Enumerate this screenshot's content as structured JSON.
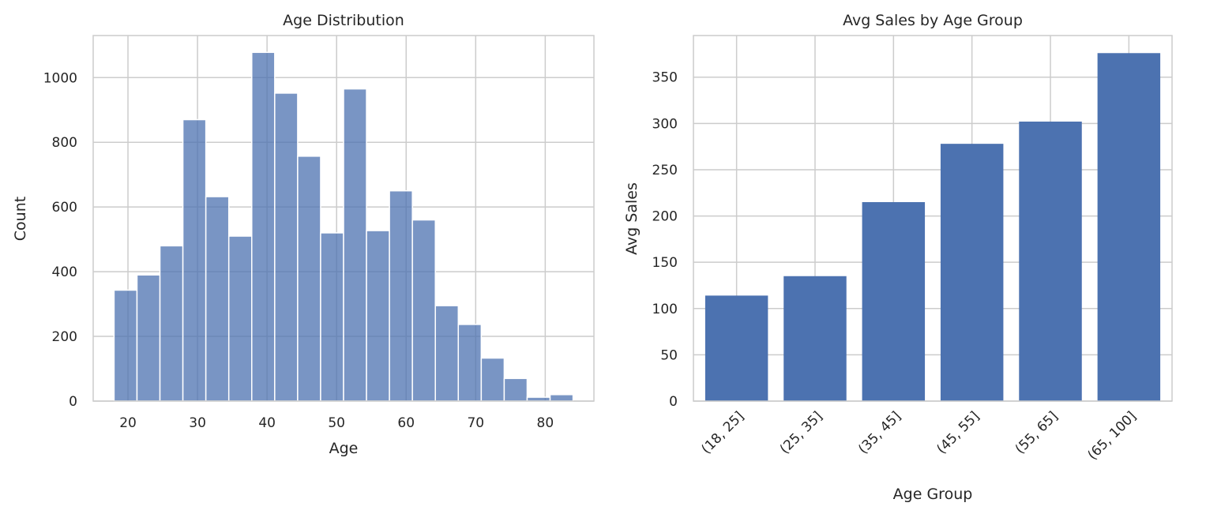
{
  "chart_data": [
    {
      "type": "bar",
      "subtype": "histogram",
      "title": "Age Distribution",
      "xlabel": "Age",
      "ylabel": "Count",
      "xlim": [
        15,
        87
      ],
      "ylim": [
        0,
        1130
      ],
      "xticks": [
        20,
        30,
        40,
        50,
        60,
        70,
        80
      ],
      "yticks": [
        0,
        200,
        400,
        600,
        800,
        1000
      ],
      "grid": true,
      "color": "#4c72b0",
      "bin_edges": [
        18,
        21.3,
        24.6,
        27.9,
        31.2,
        34.5,
        37.8,
        41.1,
        44.4,
        47.7,
        51,
        54.3,
        57.6,
        60.9,
        64.2,
        67.5,
        70.8,
        74.1,
        77.4,
        80.7,
        84
      ],
      "values": [
        343,
        390,
        480,
        870,
        632,
        510,
        1078,
        952,
        757,
        520,
        965,
        527,
        650,
        560,
        295,
        237,
        133,
        70,
        12,
        20
      ]
    },
    {
      "type": "bar",
      "title": "Avg Sales by Age Group",
      "xlabel": "Age Group",
      "ylabel": "Avg Sales",
      "ylim": [
        0,
        395
      ],
      "yticks": [
        0,
        50,
        100,
        150,
        200,
        250,
        300,
        350
      ],
      "grid": true,
      "color": "#4c72b0",
      "categories": [
        "(18, 25]",
        "(25, 35]",
        "(35, 45]",
        "(45, 55]",
        "(55, 65]",
        "(65, 100]"
      ],
      "values": [
        114,
        135,
        215,
        278,
        302,
        376
      ]
    }
  ]
}
